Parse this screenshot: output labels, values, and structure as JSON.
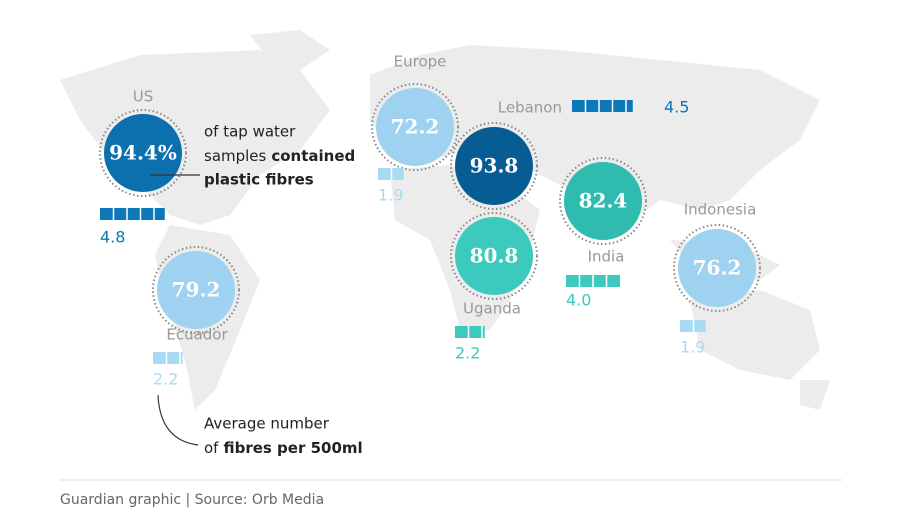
{
  "chart_data": {
    "type": "bubble-map",
    "categories": [
      "US",
      "Europe",
      "Lebanon",
      "Ecuador",
      "Uganda",
      "India",
      "Indonesia"
    ],
    "values": [
      94.4,
      72.2,
      93.8,
      79.2,
      80.8,
      82.4,
      76.2
    ],
    "value_labels": [
      "94.4%",
      "72.2",
      "93.8",
      "79.2",
      "80.8",
      "82.4",
      "76.2"
    ],
    "colors": [
      "#0c6fae",
      "#9fd2f0",
      "#075c94",
      "#9fd2f0",
      "#3ccabf",
      "#2fbcae",
      "#9fd2f0"
    ],
    "fibres": [
      4.8,
      1.9,
      4.5,
      2.2,
      2.2,
      4.0,
      1.9
    ],
    "fibre_labels": [
      "4.8",
      "1.9",
      "4.5",
      "2.2",
      "2.2",
      "4.0",
      "1.9"
    ],
    "fibre_colors": [
      "#0c77b9",
      "#a9daf3",
      "#0c77b9",
      "#a9daf3",
      "#3ccabf",
      "#3ccabf",
      "#a9daf3"
    ],
    "annotation_percent": [
      "of tap water",
      "samples",
      "contained",
      "plastic fibres"
    ],
    "annotation_fibres": [
      "Average number",
      "of",
      "fibres per 500ml"
    ],
    "source": "Guardian graphic | Source: Orb Media"
  }
}
